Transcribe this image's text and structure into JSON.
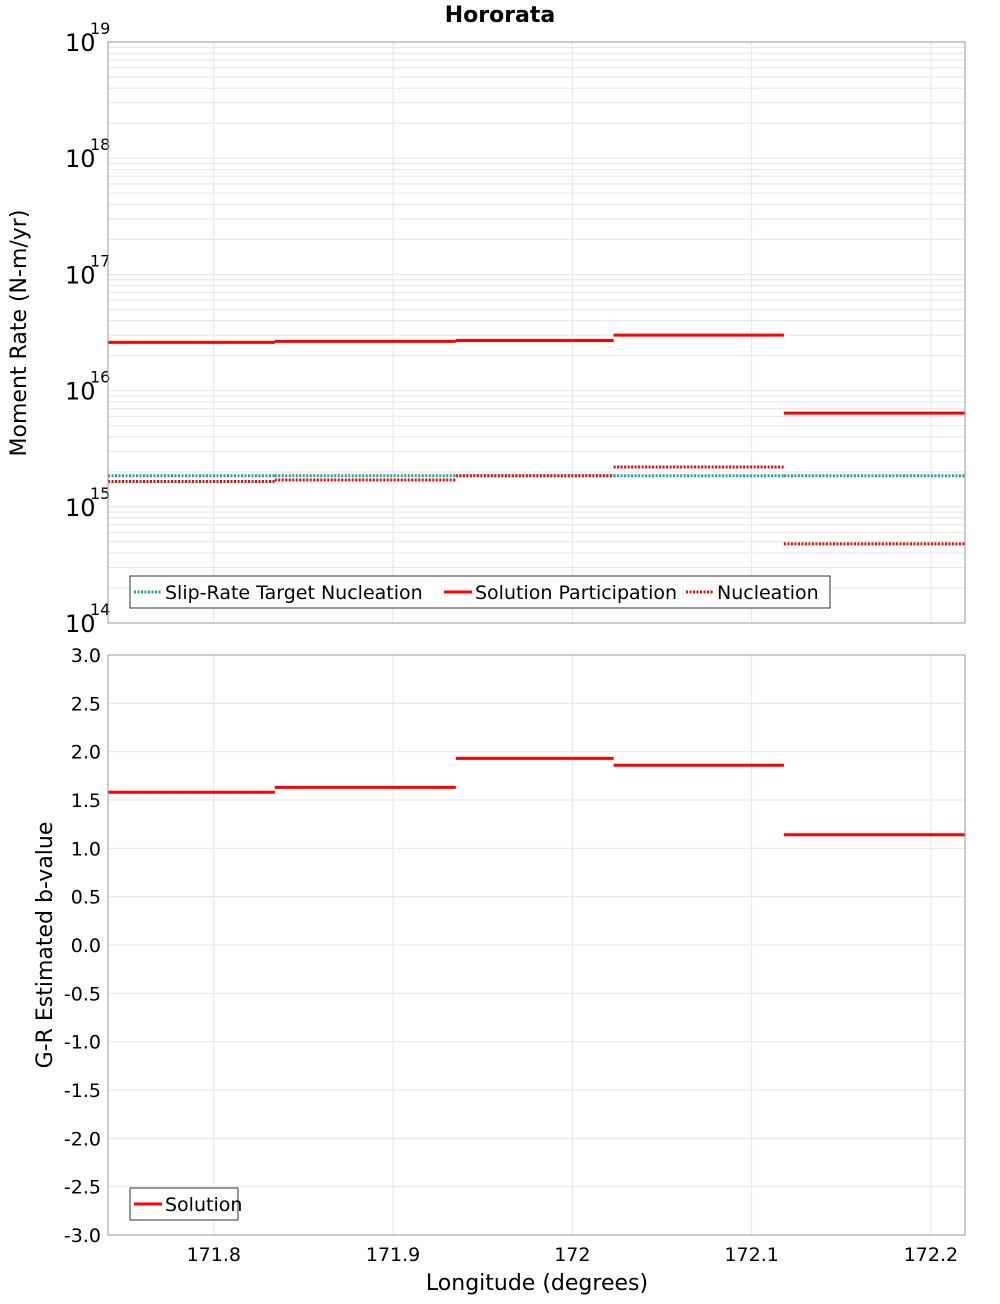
{
  "title": "Hororata",
  "xlabel": "Longitude (degrees)",
  "x_tick_labels": [
    "171.8",
    "171.9",
    "172",
    "172.1",
    "172.2"
  ],
  "colors": {
    "target": "#1aa3a3",
    "solution": "#ff0000",
    "grid": "#e6e6e6",
    "frame": "#999999"
  },
  "chart_data": [
    {
      "type": "line",
      "title": "Hororata",
      "ylabel": "Moment Rate (N-m/yr)",
      "yscale": "log",
      "ylim": [
        100000000000000.0,
        1e+19
      ],
      "xlim": [
        171.741,
        172.219
      ],
      "grid": true,
      "legend_position": "bottom-left",
      "y_tick_labels": [
        {
          "base": "10",
          "exp": "14"
        },
        {
          "base": "10",
          "exp": "15"
        },
        {
          "base": "10",
          "exp": "16"
        },
        {
          "base": "10",
          "exp": "17"
        },
        {
          "base": "10",
          "exp": "18"
        },
        {
          "base": "10",
          "exp": "19"
        }
      ],
      "series": [
        {
          "name": "Slip-Rate Target Nucleation",
          "style": "dotted",
          "color": "#1aa3a3",
          "segments": [
            {
              "x": [
                171.741,
                171.834
              ],
              "y": 1850000000000000.0
            },
            {
              "x": [
                171.834,
                171.935
              ],
              "y": 1850000000000000.0
            },
            {
              "x": [
                171.935,
                172.023
              ],
              "y": 1850000000000000.0
            },
            {
              "x": [
                172.023,
                172.118
              ],
              "y": 1850000000000000.0
            },
            {
              "x": [
                172.118,
                172.219
              ],
              "y": 1850000000000000.0
            }
          ]
        },
        {
          "name": "Solution Participation",
          "style": "solid",
          "color": "#ff0000",
          "segments": [
            {
              "x": [
                171.741,
                171.834
              ],
              "y": 2.6e+16
            },
            {
              "x": [
                171.834,
                171.935
              ],
              "y": 2.65e+16
            },
            {
              "x": [
                171.935,
                172.023
              ],
              "y": 2.7e+16
            },
            {
              "x": [
                172.023,
                172.118
              ],
              "y": 3e+16
            },
            {
              "x": [
                172.118,
                172.219
              ],
              "y": 6400000000000000.0
            }
          ]
        },
        {
          "name": "Nucleation",
          "style": "dotted",
          "color": "#ff0000",
          "segments": [
            {
              "x": [
                171.741,
                171.834
              ],
              "y": 1650000000000000.0
            },
            {
              "x": [
                171.834,
                171.935
              ],
              "y": 1700000000000000.0
            },
            {
              "x": [
                171.935,
                172.023
              ],
              "y": 1850000000000000.0
            },
            {
              "x": [
                172.023,
                172.118
              ],
              "y": 2200000000000000.0
            },
            {
              "x": [
                172.118,
                172.219
              ],
              "y": 480000000000000.0
            }
          ]
        }
      ]
    },
    {
      "type": "line",
      "ylabel": "G-R Estimated b-value",
      "xlabel": "Longitude (degrees)",
      "ylim": [
        -3.0,
        3.0
      ],
      "xlim": [
        171.741,
        172.219
      ],
      "grid": true,
      "legend_position": "bottom-left",
      "y_tick_labels": [
        "-3.0",
        "-2.5",
        "-2.0",
        "-1.5",
        "-1.0",
        "-0.5",
        "0.0",
        "0.5",
        "1.0",
        "1.5",
        "2.0",
        "2.5",
        "3.0"
      ],
      "series": [
        {
          "name": "Solution",
          "style": "solid",
          "color": "#ff0000",
          "segments": [
            {
              "x": [
                171.741,
                171.834
              ],
              "y": 1.58
            },
            {
              "x": [
                171.834,
                171.935
              ],
              "y": 1.63
            },
            {
              "x": [
                171.935,
                172.023
              ],
              "y": 1.93
            },
            {
              "x": [
                172.023,
                172.118
              ],
              "y": 1.86
            },
            {
              "x": [
                172.118,
                172.219
              ],
              "y": 1.14
            }
          ]
        }
      ]
    }
  ]
}
